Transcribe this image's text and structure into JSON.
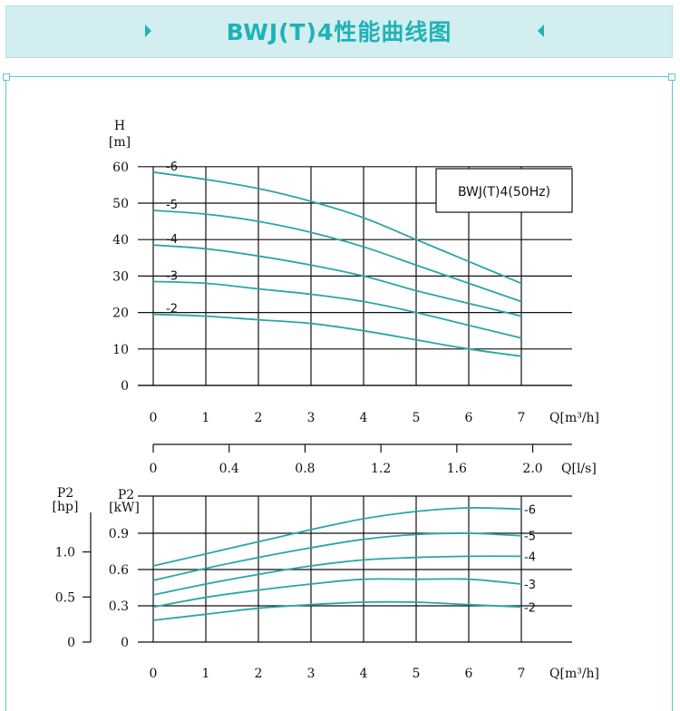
{
  "banner": {
    "title": "BWJ(T)4性能曲线图"
  },
  "colors": {
    "curve": "#2aa6a8",
    "banner_bg": "#d3eef0",
    "banner_text": "#1fb2b7",
    "grid": "#111111"
  },
  "chart_data": [
    {
      "type": "line",
      "legend_box": "BWJ(T)4(50Hz)",
      "ylabel": "H",
      "yunit": "[m]",
      "xlabel": "Q[m³/h]",
      "xlim": [
        0,
        7
      ],
      "ylim": [
        0,
        60
      ],
      "xticks": [
        "0",
        "1",
        "2",
        "3",
        "4",
        "5",
        "6",
        "7"
      ],
      "yticks": [
        "0",
        "10",
        "20",
        "30",
        "40",
        "50",
        "60"
      ],
      "grid": true,
      "series": [
        {
          "name": "-6",
          "x": [
            0,
            1,
            2,
            3,
            4,
            5,
            6,
            7
          ],
          "values": [
            58.5,
            56.5,
            54,
            50.5,
            46,
            40,
            34,
            28
          ]
        },
        {
          "name": "-5",
          "x": [
            0,
            1,
            2,
            3,
            4,
            5,
            6,
            7
          ],
          "values": [
            48,
            47,
            45,
            42,
            38,
            33,
            28,
            23
          ]
        },
        {
          "name": "-4",
          "x": [
            0,
            1,
            2,
            3,
            4,
            5,
            6,
            7
          ],
          "values": [
            38.5,
            37.5,
            35.5,
            33,
            30,
            26,
            22.5,
            19
          ]
        },
        {
          "name": "-3",
          "x": [
            0,
            1,
            2,
            3,
            4,
            5,
            6,
            7
          ],
          "values": [
            28.5,
            28,
            26.5,
            25,
            23,
            20,
            16.5,
            13
          ]
        },
        {
          "name": "-2",
          "x": [
            0,
            1,
            2,
            3,
            4,
            5,
            6,
            7
          ],
          "values": [
            19.5,
            19,
            18,
            17,
            15,
            12.5,
            10,
            8
          ]
        }
      ]
    },
    {
      "type": "axis",
      "xlabel": "Q[l/s]",
      "xlim": [
        0,
        2.2
      ],
      "xticks": [
        "0",
        "0.4",
        "0.8",
        "1.2",
        "1.6",
        "2.0"
      ],
      "xtick_values": [
        0,
        0.4,
        0.8,
        1.2,
        1.6,
        2.0
      ]
    },
    {
      "type": "line",
      "ylabel": "P2",
      "yunit": "[kW]",
      "ylabel2": "P2",
      "yunit2": "[hp]",
      "xlabel": "Q[m³/h]",
      "xlim": [
        0,
        7
      ],
      "ylim": [
        0,
        1.2
      ],
      "xticks": [
        "0",
        "1",
        "2",
        "3",
        "4",
        "5",
        "6",
        "7"
      ],
      "yticks": [
        "0",
        "0.3",
        "0.6",
        "0.9"
      ],
      "hpticks": [
        "0",
        "0.5",
        "1.0"
      ],
      "grid": true,
      "series": [
        {
          "name": "-6",
          "x": [
            0,
            1,
            2,
            3,
            4,
            5,
            6,
            7
          ],
          "values": [
            0.63,
            0.73,
            0.83,
            0.93,
            1.02,
            1.08,
            1.11,
            1.1
          ]
        },
        {
          "name": "-5",
          "x": [
            0,
            1,
            2,
            3,
            4,
            5,
            6,
            7
          ],
          "values": [
            0.51,
            0.61,
            0.7,
            0.78,
            0.85,
            0.89,
            0.9,
            0.88
          ]
        },
        {
          "name": "-4",
          "x": [
            0,
            1,
            2,
            3,
            4,
            5,
            6,
            7
          ],
          "values": [
            0.39,
            0.48,
            0.56,
            0.63,
            0.68,
            0.7,
            0.71,
            0.71
          ]
        },
        {
          "name": "-3",
          "x": [
            0,
            1,
            2,
            3,
            4,
            5,
            6,
            7
          ],
          "values": [
            0.29,
            0.37,
            0.43,
            0.48,
            0.52,
            0.52,
            0.52,
            0.48
          ]
        },
        {
          "name": "-2",
          "x": [
            0,
            1,
            2,
            3,
            4,
            5,
            6,
            7
          ],
          "values": [
            0.18,
            0.23,
            0.28,
            0.31,
            0.33,
            0.33,
            0.31,
            0.29
          ]
        }
      ]
    }
  ]
}
